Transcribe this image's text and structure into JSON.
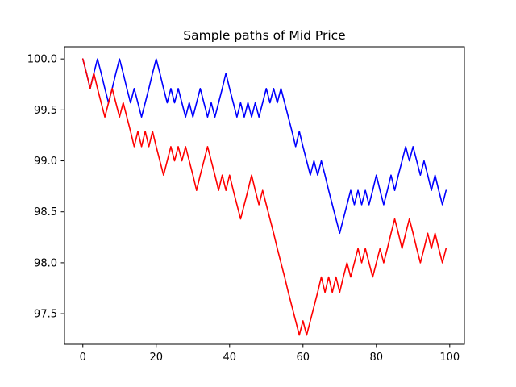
{
  "chart_data": {
    "type": "line",
    "title": "Sample paths of Mid Price",
    "xlabel": "",
    "ylabel": "",
    "xlim": [
      -5,
      104
    ],
    "ylim": [
      97.2,
      100.12
    ],
    "xticks": [
      0,
      20,
      40,
      60,
      80,
      100
    ],
    "xtick_labels": [
      "0",
      "20",
      "40",
      "60",
      "80",
      "100"
    ],
    "yticks": [
      97.5,
      98.0,
      98.5,
      99.0,
      99.5,
      100.0
    ],
    "ytick_labels": [
      "97.5",
      "98.0",
      "98.5",
      "99.0",
      "99.5",
      "100.0"
    ],
    "grid": false,
    "legend": "none",
    "series": [
      {
        "color": "#0000ff",
        "x": [
          0,
          1,
          2,
          3,
          4,
          5,
          6,
          7,
          8,
          9,
          10,
          11,
          12,
          13,
          14,
          15,
          16,
          17,
          18,
          19,
          20,
          21,
          22,
          23,
          24,
          25,
          26,
          27,
          28,
          29,
          30,
          31,
          32,
          33,
          34,
          35,
          36,
          37,
          38,
          39,
          40,
          41,
          42,
          43,
          44,
          45,
          46,
          47,
          48,
          49,
          50,
          51,
          52,
          53,
          54,
          55,
          56,
          57,
          58,
          59,
          60,
          61,
          62,
          63,
          64,
          65,
          66,
          67,
          68,
          69,
          70,
          71,
          72,
          73,
          74,
          75,
          76,
          77,
          78,
          79,
          80,
          81,
          82,
          83,
          84,
          85,
          86,
          87,
          88,
          89,
          90,
          91,
          92,
          93,
          94,
          95,
          96,
          97,
          98,
          99
        ],
        "y": [
          100.0,
          99.86,
          99.71,
          99.86,
          100.0,
          99.86,
          99.71,
          99.57,
          99.71,
          99.86,
          100.0,
          99.86,
          99.71,
          99.57,
          99.71,
          99.57,
          99.43,
          99.57,
          99.71,
          99.86,
          100.0,
          99.86,
          99.71,
          99.57,
          99.71,
          99.57,
          99.71,
          99.57,
          99.43,
          99.57,
          99.43,
          99.57,
          99.71,
          99.57,
          99.43,
          99.57,
          99.43,
          99.57,
          99.71,
          99.86,
          99.71,
          99.57,
          99.43,
          99.57,
          99.43,
          99.57,
          99.43,
          99.57,
          99.43,
          99.57,
          99.71,
          99.57,
          99.71,
          99.57,
          99.71,
          99.57,
          99.43,
          99.29,
          99.14,
          99.29,
          99.14,
          99.0,
          98.86,
          99.0,
          98.86,
          99.0,
          98.86,
          98.71,
          98.57,
          98.43,
          98.29,
          98.43,
          98.57,
          98.71,
          98.57,
          98.71,
          98.57,
          98.71,
          98.57,
          98.71,
          98.86,
          98.71,
          98.57,
          98.71,
          98.86,
          98.71,
          98.86,
          99.0,
          99.14,
          99.0,
          99.14,
          99.0,
          98.86,
          99.0,
          98.86,
          98.71,
          98.86,
          98.71,
          98.57,
          98.71
        ]
      },
      {
        "color": "#ff0000",
        "x": [
          0,
          1,
          2,
          3,
          4,
          5,
          6,
          7,
          8,
          9,
          10,
          11,
          12,
          13,
          14,
          15,
          16,
          17,
          18,
          19,
          20,
          21,
          22,
          23,
          24,
          25,
          26,
          27,
          28,
          29,
          30,
          31,
          32,
          33,
          34,
          35,
          36,
          37,
          38,
          39,
          40,
          41,
          42,
          43,
          44,
          45,
          46,
          47,
          48,
          49,
          50,
          51,
          52,
          53,
          54,
          55,
          56,
          57,
          58,
          59,
          60,
          61,
          62,
          63,
          64,
          65,
          66,
          67,
          68,
          69,
          70,
          71,
          72,
          73,
          74,
          75,
          76,
          77,
          78,
          79,
          80,
          81,
          82,
          83,
          84,
          85,
          86,
          87,
          88,
          89,
          90,
          91,
          92,
          93,
          94,
          95,
          96,
          97,
          98,
          99
        ],
        "y": [
          100.0,
          99.86,
          99.71,
          99.86,
          99.71,
          99.57,
          99.43,
          99.57,
          99.71,
          99.57,
          99.43,
          99.57,
          99.43,
          99.29,
          99.14,
          99.29,
          99.14,
          99.29,
          99.14,
          99.29,
          99.14,
          99.0,
          98.86,
          99.0,
          99.14,
          99.0,
          99.14,
          99.0,
          99.14,
          99.0,
          98.86,
          98.71,
          98.86,
          99.0,
          99.14,
          99.0,
          98.86,
          98.71,
          98.86,
          98.71,
          98.86,
          98.71,
          98.57,
          98.43,
          98.57,
          98.71,
          98.86,
          98.71,
          98.57,
          98.71,
          98.57,
          98.43,
          98.29,
          98.14,
          98.0,
          97.86,
          97.71,
          97.57,
          97.43,
          97.29,
          97.43,
          97.29,
          97.43,
          97.57,
          97.71,
          97.86,
          97.71,
          97.86,
          97.71,
          97.86,
          97.71,
          97.86,
          98.0,
          97.86,
          98.0,
          98.14,
          98.0,
          98.14,
          98.0,
          97.86,
          98.0,
          98.14,
          98.0,
          98.14,
          98.29,
          98.43,
          98.29,
          98.14,
          98.29,
          98.43,
          98.29,
          98.14,
          98.0,
          98.14,
          98.29,
          98.14,
          98.29,
          98.14,
          98.0,
          98.14
        ]
      }
    ]
  }
}
